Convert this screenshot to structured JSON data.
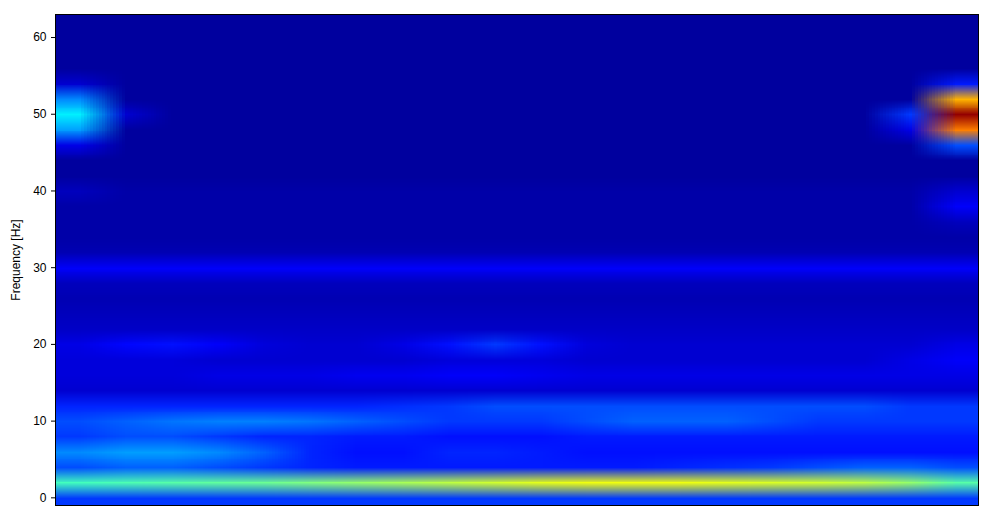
{
  "chart_data": {
    "type": "heatmap",
    "y_label": "Frequency [Hz]",
    "xlim": [
      0,
      20
    ],
    "ylim": [
      -1,
      63
    ],
    "yticks": [
      0,
      10,
      20,
      30,
      40,
      50,
      60
    ],
    "tick_labels": "y",
    "color": "jet",
    "color_range": [
      0,
      100
    ],
    "cells": [
      [
        18,
        18,
        18,
        18,
        18,
        18,
        18,
        18,
        18,
        18,
        18,
        18,
        18,
        18,
        18,
        18,
        18,
        18,
        18,
        18
      ],
      [
        44,
        45,
        46,
        47,
        48,
        50,
        52,
        54,
        56,
        58,
        60,
        61,
        61,
        61,
        60,
        59,
        58,
        56,
        52,
        46
      ],
      [
        20,
        22,
        22,
        20,
        18,
        16,
        15,
        15,
        15,
        15,
        15,
        15,
        15,
        16,
        17,
        18,
        20,
        22,
        22,
        20
      ],
      [
        26,
        28,
        28,
        26,
        22,
        16,
        14,
        14,
        16,
        16,
        15,
        14,
        14,
        14,
        14,
        14,
        14,
        14,
        14,
        14
      ],
      [
        18,
        20,
        20,
        18,
        16,
        16,
        15,
        15,
        14,
        14,
        14,
        15,
        15,
        15,
        15,
        15,
        15,
        15,
        15,
        15
      ],
      [
        20,
        22,
        24,
        25,
        25,
        24,
        22,
        20,
        18,
        18,
        18,
        20,
        22,
        22,
        22,
        20,
        18,
        18,
        18,
        18
      ],
      [
        16,
        16,
        16,
        16,
        16,
        16,
        16,
        17,
        18,
        20,
        20,
        20,
        20,
        20,
        20,
        20,
        20,
        20,
        18,
        18
      ],
      [
        8,
        8,
        8,
        8,
        8,
        8,
        8,
        8,
        8,
        8,
        8,
        8,
        8,
        8,
        8,
        8,
        8,
        8,
        8,
        8
      ],
      [
        9,
        9,
        9,
        10,
        10,
        10,
        11,
        11,
        12,
        12,
        11,
        10,
        10,
        10,
        10,
        10,
        10,
        10,
        10,
        10
      ],
      [
        9,
        9,
        9,
        8,
        8,
        8,
        8,
        8,
        9,
        9,
        9,
        8,
        8,
        8,
        8,
        8,
        8,
        8,
        10,
        12
      ],
      [
        10,
        13,
        14,
        12,
        9,
        8,
        8,
        10,
        14,
        18,
        14,
        9,
        8,
        8,
        8,
        8,
        8,
        8,
        8,
        10
      ],
      [
        7,
        7,
        7,
        7,
        7,
        7,
        7,
        7,
        7,
        7,
        7,
        7,
        7,
        7,
        7,
        7,
        7,
        7,
        7,
        7
      ],
      [
        6,
        6,
        6,
        6,
        6,
        6,
        6,
        6,
        6,
        6,
        6,
        6,
        6,
        6,
        6,
        6,
        6,
        6,
        6,
        6
      ],
      [
        5,
        5,
        5,
        5,
        5,
        5,
        5,
        5,
        5,
        5,
        5,
        5,
        5,
        5,
        5,
        5,
        5,
        5,
        5,
        5
      ],
      [
        6,
        6,
        6,
        6,
        6,
        6,
        6,
        6,
        6,
        6,
        6,
        6,
        6,
        6,
        6,
        6,
        6,
        6,
        6,
        6
      ],
      [
        12,
        12,
        12,
        12,
        12,
        12,
        12,
        12,
        12,
        12,
        12,
        12,
        12,
        12,
        12,
        12,
        12,
        12,
        12,
        12
      ],
      [
        5,
        5,
        5,
        5,
        5,
        5,
        5,
        5,
        5,
        5,
        5,
        5,
        5,
        5,
        5,
        5,
        5,
        5,
        5,
        5
      ],
      [
        4,
        4,
        4,
        4,
        4,
        4,
        4,
        4,
        4,
        4,
        4,
        4,
        4,
        4,
        4,
        4,
        4,
        4,
        4,
        4
      ],
      [
        4,
        4,
        4,
        4,
        4,
        4,
        4,
        4,
        4,
        4,
        4,
        4,
        4,
        4,
        4,
        4,
        4,
        4,
        4,
        6
      ],
      [
        4,
        4,
        4,
        4,
        4,
        4,
        4,
        4,
        4,
        4,
        4,
        4,
        4,
        4,
        4,
        4,
        4,
        4,
        4,
        12
      ],
      [
        6,
        4,
        4,
        4,
        4,
        4,
        4,
        4,
        4,
        4,
        4,
        4,
        4,
        4,
        4,
        4,
        4,
        4,
        4,
        8
      ],
      [
        3,
        3,
        3,
        3,
        3,
        3,
        3,
        3,
        3,
        3,
        3,
        3,
        3,
        3,
        3,
        3,
        3,
        3,
        3,
        3
      ],
      [
        3,
        3,
        3,
        3,
        3,
        3,
        3,
        3,
        3,
        3,
        3,
        3,
        3,
        3,
        3,
        3,
        3,
        3,
        3,
        3
      ],
      [
        10,
        3,
        3,
        3,
        3,
        3,
        3,
        3,
        3,
        3,
        3,
        3,
        3,
        3,
        3,
        3,
        3,
        3,
        3,
        20
      ],
      [
        28,
        3,
        3,
        3,
        3,
        3,
        3,
        3,
        3,
        3,
        3,
        3,
        3,
        3,
        3,
        3,
        3,
        3,
        10,
        75
      ],
      [
        36,
        8,
        3,
        3,
        3,
        3,
        3,
        3,
        3,
        3,
        3,
        3,
        3,
        3,
        3,
        3,
        3,
        3,
        18,
        98
      ],
      [
        26,
        3,
        3,
        3,
        3,
        3,
        3,
        3,
        3,
        3,
        3,
        3,
        3,
        3,
        3,
        3,
        3,
        3,
        3,
        70
      ],
      [
        8,
        3,
        3,
        3,
        3,
        3,
        3,
        3,
        3,
        3,
        3,
        3,
        3,
        3,
        3,
        3,
        3,
        3,
        3,
        15
      ],
      [
        3,
        3,
        3,
        3,
        3,
        3,
        3,
        3,
        3,
        3,
        3,
        3,
        3,
        3,
        3,
        3,
        3,
        3,
        3,
        3
      ],
      [
        3,
        3,
        3,
        3,
        3,
        3,
        3,
        3,
        3,
        3,
        3,
        3,
        3,
        3,
        3,
        3,
        3,
        3,
        3,
        3
      ],
      [
        3,
        3,
        3,
        3,
        3,
        3,
        3,
        3,
        3,
        3,
        3,
        3,
        3,
        3,
        3,
        3,
        3,
        3,
        3,
        3
      ],
      [
        3,
        3,
        3,
        3,
        3,
        3,
        3,
        3,
        3,
        3,
        3,
        3,
        3,
        3,
        3,
        3,
        3,
        3,
        3,
        3
      ]
    ]
  }
}
